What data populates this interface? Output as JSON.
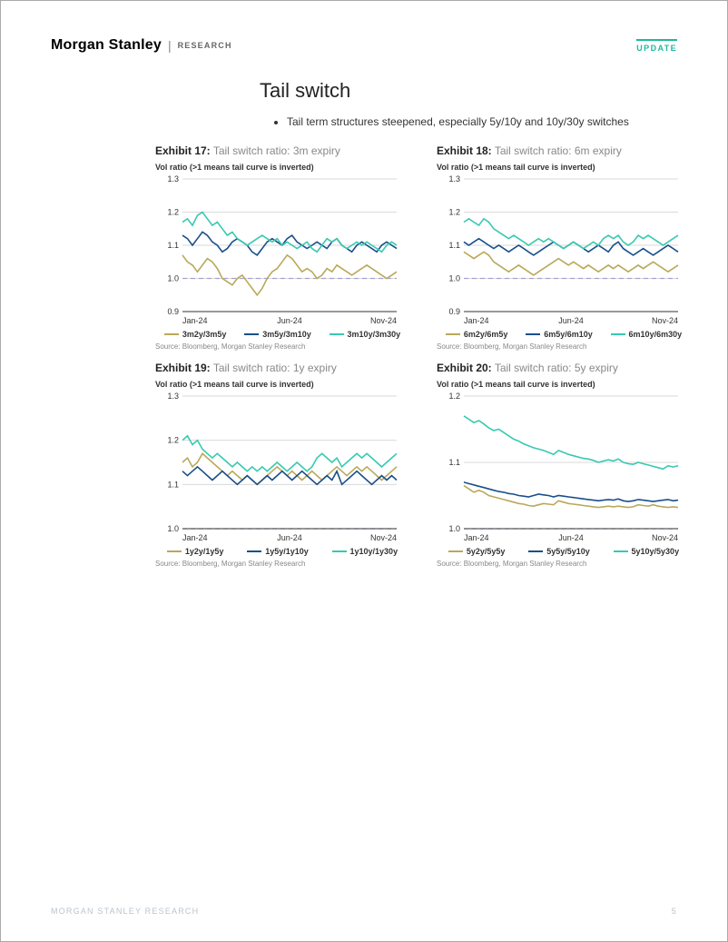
{
  "header": {
    "brand": "Morgan Stanley",
    "sub": "RESEARCH",
    "badge": "UPDATE"
  },
  "title": "Tail switch",
  "bullets": [
    "Tail term structures steepened, especially 5y/10y and 10y/30y switches"
  ],
  "colors": {
    "gold": "#b9a95a",
    "navy": "#1a4f8b",
    "teal": "#38c9b0",
    "grid": "#d9d9d9",
    "ref": "#a9a0d5",
    "axis": "#333333",
    "tick_text": "#333333"
  },
  "x_axis": {
    "ticks": [
      "Jan-24",
      "Jun-24",
      "Nov-24"
    ],
    "positions": [
      0,
      0.5,
      1.0
    ]
  },
  "charts": [
    {
      "exhibit": "Exhibit 17:",
      "desc": "Tail switch ratio: 3m expiry",
      "subtitle": "Vol ratio (>1 means tail curve is inverted)",
      "ylim": [
        0.9,
        1.3
      ],
      "ytick_step": 0.1,
      "series": [
        {
          "label": "3m2y/3m5y",
          "color_key": "gold",
          "y": [
            1.07,
            1.05,
            1.04,
            1.02,
            1.04,
            1.06,
            1.05,
            1.03,
            1.0,
            0.99,
            0.98,
            1.0,
            1.01,
            0.99,
            0.97,
            0.95,
            0.97,
            1.0,
            1.02,
            1.03,
            1.05,
            1.07,
            1.06,
            1.04,
            1.02,
            1.03,
            1.02,
            1.0,
            1.01,
            1.03,
            1.02,
            1.04,
            1.03,
            1.02,
            1.01,
            1.02,
            1.03,
            1.04,
            1.03,
            1.02,
            1.01,
            1.0,
            1.01,
            1.02
          ]
        },
        {
          "label": "3m5y/3m10y",
          "color_key": "navy",
          "y": [
            1.13,
            1.12,
            1.1,
            1.12,
            1.14,
            1.13,
            1.11,
            1.1,
            1.08,
            1.09,
            1.11,
            1.12,
            1.11,
            1.1,
            1.08,
            1.07,
            1.09,
            1.11,
            1.12,
            1.11,
            1.1,
            1.12,
            1.13,
            1.11,
            1.1,
            1.09,
            1.1,
            1.11,
            1.1,
            1.09,
            1.11,
            1.12,
            1.1,
            1.09,
            1.08,
            1.1,
            1.11,
            1.1,
            1.09,
            1.08,
            1.1,
            1.11,
            1.1,
            1.09
          ]
        },
        {
          "label": "3m10y/3m30y",
          "color_key": "teal",
          "y": [
            1.17,
            1.18,
            1.16,
            1.19,
            1.2,
            1.18,
            1.16,
            1.17,
            1.15,
            1.13,
            1.14,
            1.12,
            1.11,
            1.1,
            1.11,
            1.12,
            1.13,
            1.12,
            1.11,
            1.12,
            1.1,
            1.11,
            1.1,
            1.09,
            1.1,
            1.11,
            1.09,
            1.08,
            1.1,
            1.12,
            1.11,
            1.12,
            1.1,
            1.09,
            1.1,
            1.11,
            1.1,
            1.11,
            1.1,
            1.09,
            1.08,
            1.1,
            1.11,
            1.1
          ]
        }
      ],
      "source": "Source: Bloomberg, Morgan Stanley Research"
    },
    {
      "exhibit": "Exhibit 18:",
      "desc": "Tail switch ratio: 6m expiry",
      "subtitle": "Vol ratio (>1 means tail curve is inverted)",
      "ylim": [
        0.9,
        1.3
      ],
      "ytick_step": 0.1,
      "series": [
        {
          "label": "6m2y/6m5y",
          "color_key": "gold",
          "y": [
            1.08,
            1.07,
            1.06,
            1.07,
            1.08,
            1.07,
            1.05,
            1.04,
            1.03,
            1.02,
            1.03,
            1.04,
            1.03,
            1.02,
            1.01,
            1.02,
            1.03,
            1.04,
            1.05,
            1.06,
            1.05,
            1.04,
            1.05,
            1.04,
            1.03,
            1.04,
            1.03,
            1.02,
            1.03,
            1.04,
            1.03,
            1.04,
            1.03,
            1.02,
            1.03,
            1.04,
            1.03,
            1.04,
            1.05,
            1.04,
            1.03,
            1.02,
            1.03,
            1.04
          ]
        },
        {
          "label": "6m5y/6m10y",
          "color_key": "navy",
          "y": [
            1.11,
            1.1,
            1.11,
            1.12,
            1.11,
            1.1,
            1.09,
            1.1,
            1.09,
            1.08,
            1.09,
            1.1,
            1.09,
            1.08,
            1.07,
            1.08,
            1.09,
            1.1,
            1.11,
            1.1,
            1.09,
            1.1,
            1.11,
            1.1,
            1.09,
            1.08,
            1.09,
            1.1,
            1.09,
            1.08,
            1.1,
            1.11,
            1.09,
            1.08,
            1.07,
            1.08,
            1.09,
            1.08,
            1.07,
            1.08,
            1.09,
            1.1,
            1.09,
            1.08
          ]
        },
        {
          "label": "6m10y/6m30y",
          "color_key": "teal",
          "y": [
            1.17,
            1.18,
            1.17,
            1.16,
            1.18,
            1.17,
            1.15,
            1.14,
            1.13,
            1.12,
            1.13,
            1.12,
            1.11,
            1.1,
            1.11,
            1.12,
            1.11,
            1.12,
            1.11,
            1.1,
            1.09,
            1.1,
            1.11,
            1.1,
            1.09,
            1.1,
            1.11,
            1.1,
            1.12,
            1.13,
            1.12,
            1.13,
            1.11,
            1.1,
            1.11,
            1.13,
            1.12,
            1.13,
            1.12,
            1.11,
            1.1,
            1.11,
            1.12,
            1.13
          ]
        }
      ],
      "source": "Source: Bloomberg, Morgan Stanley Research"
    },
    {
      "exhibit": "Exhibit 19:",
      "desc": "Tail switch ratio: 1y expiry",
      "subtitle": "Vol ratio (>1 means tail curve is inverted)",
      "ylim": [
        1.0,
        1.3
      ],
      "ytick_step": 0.1,
      "series": [
        {
          "label": "1y2y/1y5y",
          "color_key": "gold",
          "y": [
            1.15,
            1.16,
            1.14,
            1.15,
            1.17,
            1.16,
            1.15,
            1.14,
            1.13,
            1.12,
            1.13,
            1.12,
            1.11,
            1.12,
            1.11,
            1.1,
            1.11,
            1.12,
            1.13,
            1.14,
            1.13,
            1.12,
            1.13,
            1.12,
            1.11,
            1.12,
            1.13,
            1.12,
            1.11,
            1.12,
            1.13,
            1.14,
            1.13,
            1.12,
            1.13,
            1.14,
            1.13,
            1.14,
            1.13,
            1.12,
            1.11,
            1.12,
            1.13,
            1.14
          ]
        },
        {
          "label": "1y5y/1y10y",
          "color_key": "navy",
          "y": [
            1.13,
            1.12,
            1.13,
            1.14,
            1.13,
            1.12,
            1.11,
            1.12,
            1.13,
            1.12,
            1.11,
            1.1,
            1.11,
            1.12,
            1.11,
            1.1,
            1.11,
            1.12,
            1.11,
            1.12,
            1.13,
            1.12,
            1.11,
            1.12,
            1.13,
            1.12,
            1.11,
            1.1,
            1.11,
            1.12,
            1.11,
            1.13,
            1.1,
            1.11,
            1.12,
            1.13,
            1.12,
            1.11,
            1.1,
            1.11,
            1.12,
            1.11,
            1.12,
            1.11
          ]
        },
        {
          "label": "1y10y/1y30y",
          "color_key": "teal",
          "y": [
            1.2,
            1.21,
            1.19,
            1.2,
            1.18,
            1.17,
            1.16,
            1.17,
            1.16,
            1.15,
            1.14,
            1.15,
            1.14,
            1.13,
            1.14,
            1.13,
            1.14,
            1.13,
            1.14,
            1.15,
            1.14,
            1.13,
            1.14,
            1.15,
            1.14,
            1.13,
            1.14,
            1.16,
            1.17,
            1.16,
            1.15,
            1.16,
            1.14,
            1.15,
            1.16,
            1.17,
            1.16,
            1.17,
            1.16,
            1.15,
            1.14,
            1.15,
            1.16,
            1.17
          ]
        }
      ],
      "source": "Source: Bloomberg, Morgan Stanley Research"
    },
    {
      "exhibit": "Exhibit 20:",
      "desc": "Tail switch ratio: 5y expiry",
      "subtitle": "Vol ratio (>1 means tail curve is inverted)",
      "ylim": [
        1.0,
        1.2
      ],
      "ytick_step": 0.1,
      "series": [
        {
          "label": "5y2y/5y5y",
          "color_key": "gold",
          "y": [
            1.065,
            1.06,
            1.055,
            1.058,
            1.055,
            1.05,
            1.048,
            1.046,
            1.044,
            1.042,
            1.04,
            1.038,
            1.037,
            1.035,
            1.034,
            1.036,
            1.038,
            1.037,
            1.036,
            1.042,
            1.04,
            1.038,
            1.037,
            1.036,
            1.035,
            1.034,
            1.033,
            1.032,
            1.033,
            1.034,
            1.033,
            1.034,
            1.033,
            1.032,
            1.033,
            1.036,
            1.035,
            1.034,
            1.036,
            1.034,
            1.033,
            1.032,
            1.033,
            1.032
          ]
        },
        {
          "label": "5y5y/5y10y",
          "color_key": "navy",
          "y": [
            1.07,
            1.068,
            1.066,
            1.064,
            1.062,
            1.06,
            1.058,
            1.056,
            1.055,
            1.053,
            1.052,
            1.05,
            1.049,
            1.048,
            1.05,
            1.052,
            1.051,
            1.05,
            1.048,
            1.05,
            1.049,
            1.048,
            1.047,
            1.046,
            1.045,
            1.044,
            1.043,
            1.042,
            1.043,
            1.044,
            1.043,
            1.045,
            1.042,
            1.041,
            1.042,
            1.044,
            1.043,
            1.042,
            1.041,
            1.042,
            1.043,
            1.044,
            1.042,
            1.043
          ]
        },
        {
          "label": "5y10y/5y30y",
          "color_key": "teal",
          "y": [
            1.17,
            1.165,
            1.16,
            1.163,
            1.158,
            1.152,
            1.148,
            1.15,
            1.145,
            1.14,
            1.135,
            1.132,
            1.128,
            1.125,
            1.122,
            1.12,
            1.118,
            1.115,
            1.112,
            1.118,
            1.115,
            1.112,
            1.11,
            1.108,
            1.106,
            1.105,
            1.103,
            1.1,
            1.102,
            1.104,
            1.102,
            1.105,
            1.1,
            1.098,
            1.097,
            1.1,
            1.098,
            1.096,
            1.094,
            1.092,
            1.09,
            1.095,
            1.093,
            1.095
          ]
        }
      ],
      "source": "Source: Bloomberg, Morgan Stanley Research"
    }
  ],
  "footer": {
    "left": "MORGAN STANLEY RESEARCH",
    "page": "5"
  }
}
